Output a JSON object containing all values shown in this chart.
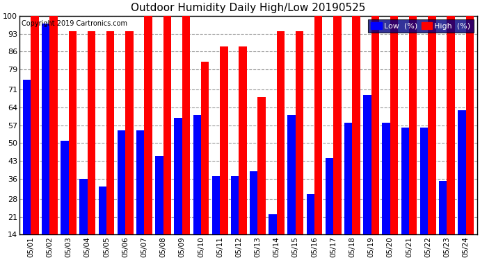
{
  "title": "Outdoor Humidity Daily High/Low 20190525",
  "copyright": "Copyright 2019 Cartronics.com",
  "dates": [
    "05/01",
    "05/02",
    "05/03",
    "05/04",
    "05/05",
    "05/06",
    "05/07",
    "05/08",
    "05/09",
    "05/10",
    "05/11",
    "05/12",
    "05/13",
    "05/14",
    "05/15",
    "05/16",
    "05/17",
    "05/18",
    "05/19",
    "05/20",
    "05/21",
    "05/22",
    "05/23",
    "05/24"
  ],
  "high": [
    100,
    100,
    94,
    94,
    94,
    94,
    100,
    100,
    100,
    82,
    88,
    88,
    68,
    94,
    94,
    100,
    100,
    100,
    100,
    100,
    100,
    100,
    100,
    100
  ],
  "low": [
    75,
    97,
    51,
    36,
    33,
    55,
    55,
    45,
    60,
    61,
    37,
    37,
    39,
    22,
    61,
    30,
    44,
    58,
    69,
    58,
    56,
    56,
    35,
    63
  ],
  "high_color": "#ff0000",
  "low_color": "#0000ff",
  "bg_color": "#ffffff",
  "grid_color": "#999999",
  "ymin": 14,
  "ymax": 100,
  "yticks": [
    14,
    21,
    28,
    36,
    43,
    50,
    57,
    64,
    71,
    79,
    86,
    93,
    100
  ],
  "bar_width": 0.42,
  "legend_low_label": "Low  (%)",
  "legend_high_label": "High  (%)",
  "legend_bg": "#000080"
}
